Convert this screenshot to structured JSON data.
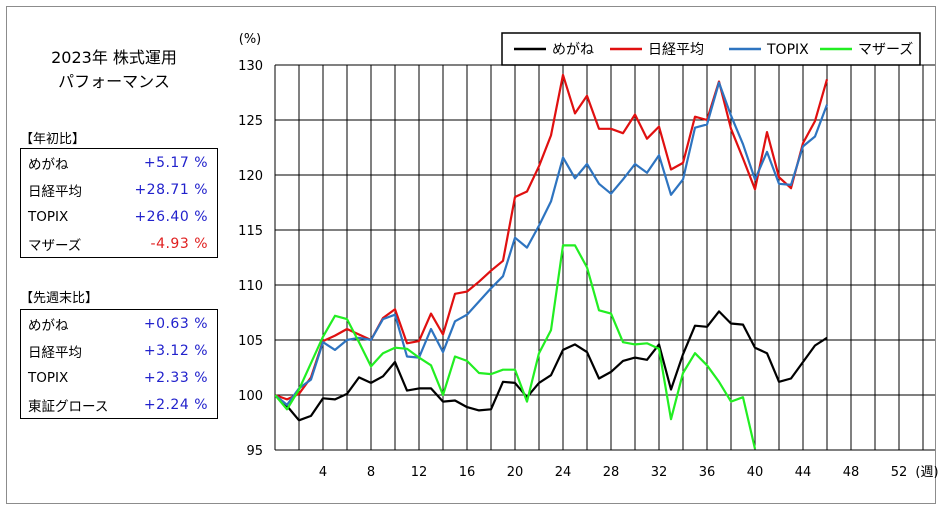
{
  "title": {
    "line1": "2023年 株式運用",
    "line2": "パフォーマンス"
  },
  "ytd": {
    "heading": "【年初比】",
    "rows": [
      {
        "name": "めがね",
        "value": "+5.17 %",
        "color": "#2222cc"
      },
      {
        "name": "日経平均",
        "value": "+28.71 %",
        "color": "#2222cc"
      },
      {
        "name": "TOPIX",
        "value": "+26.40 %",
        "color": "#2222cc"
      },
      {
        "name": "マザーズ",
        "value": "-4.93 %",
        "color": "#e02020"
      }
    ]
  },
  "wow": {
    "heading": "【先週末比】",
    "rows": [
      {
        "name": "めがね",
        "value": "+0.63 %",
        "color": "#2222cc"
      },
      {
        "name": "日経平均",
        "value": "+3.12 %",
        "color": "#2222cc"
      },
      {
        "name": "TOPIX",
        "value": "+2.33 %",
        "color": "#2222cc"
      },
      {
        "name": "東証グロース",
        "value": "+2.24 %",
        "color": "#2222cc"
      }
    ]
  },
  "chart_data": {
    "type": "line",
    "ylabel": "(%)",
    "xlabel": "(週)",
    "ylim": [
      95,
      130
    ],
    "xlim": [
      0,
      55
    ],
    "yticks": [
      95,
      100,
      105,
      110,
      115,
      120,
      125,
      130
    ],
    "xticks": [
      4,
      8,
      12,
      16,
      20,
      24,
      28,
      32,
      36,
      40,
      44,
      48,
      52
    ],
    "grid": true,
    "legend": "top-right",
    "series": [
      {
        "name": "めがね",
        "color": "#000000",
        "x": [
          0,
          1,
          2,
          3,
          4,
          5,
          6,
          7,
          8,
          9,
          10,
          11,
          12,
          13,
          14,
          15,
          16,
          17,
          18,
          19,
          20,
          21,
          22,
          23,
          24,
          25,
          26,
          27,
          28,
          29,
          30,
          31,
          32,
          33,
          34,
          35,
          36,
          37,
          38,
          39,
          40,
          41,
          42,
          43,
          44,
          45,
          46
        ],
        "y": [
          100,
          99,
          97.7,
          98.1,
          99.7,
          99.6,
          100.1,
          101.6,
          101.1,
          101.7,
          103,
          100.4,
          100.6,
          100.6,
          99.4,
          99.5,
          98.9,
          98.6,
          98.7,
          101.2,
          101.1,
          99.8,
          101.1,
          101.8,
          104.1,
          104.6,
          103.9,
          101.5,
          102.1,
          103.1,
          103.4,
          103.2,
          104.6,
          100.5,
          103.7,
          106.3,
          106.2,
          107.6,
          106.5,
          106.4,
          104.3,
          103.8,
          101.2,
          101.5,
          103,
          104.5,
          105.2
        ]
      },
      {
        "name": "日経平均",
        "color": "#e01010",
        "x": [
          0,
          1,
          2,
          3,
          4,
          5,
          6,
          7,
          8,
          9,
          10,
          11,
          12,
          13,
          14,
          15,
          16,
          17,
          18,
          19,
          20,
          21,
          22,
          23,
          24,
          25,
          26,
          27,
          28,
          29,
          30,
          31,
          32,
          33,
          34,
          35,
          36,
          37,
          38,
          39,
          40,
          41,
          42,
          43,
          44,
          45,
          46
        ],
        "y": [
          100,
          99.6,
          100.1,
          101.6,
          104.9,
          105.4,
          106,
          105.5,
          105,
          107,
          107.8,
          104.7,
          104.9,
          107.4,
          105.5,
          109.2,
          109.4,
          110.3,
          111.3,
          112.2,
          118,
          118.5,
          120.8,
          123.6,
          129.1,
          125.6,
          127.2,
          124.2,
          124.2,
          123.8,
          125.5,
          123.3,
          124.4,
          120.5,
          121.1,
          125.3,
          125,
          128.5,
          124.2,
          121.5,
          118.7,
          123.9,
          119.8,
          118.8,
          122.9,
          124.9,
          128.7
        ]
      },
      {
        "name": "TOPIX",
        "color": "#2e74c0",
        "x": [
          0,
          1,
          2,
          3,
          4,
          5,
          6,
          7,
          8,
          9,
          10,
          11,
          12,
          13,
          14,
          15,
          16,
          17,
          18,
          19,
          20,
          21,
          22,
          23,
          24,
          25,
          26,
          27,
          28,
          29,
          30,
          31,
          32,
          33,
          34,
          35,
          36,
          37,
          38,
          39,
          40,
          41,
          42,
          43,
          44,
          45,
          46
        ],
        "y": [
          100,
          99.1,
          100.6,
          101.4,
          104.8,
          104.1,
          105,
          105.2,
          105,
          106.9,
          107.3,
          103.5,
          103.4,
          106,
          103.9,
          106.7,
          107.3,
          108.5,
          109.7,
          110.8,
          114.3,
          113.4,
          115.4,
          117.6,
          121.6,
          119.7,
          121,
          119.2,
          118.3,
          119.6,
          121,
          120.2,
          121.8,
          118.2,
          119.6,
          124.3,
          124.6,
          128.4,
          125.4,
          122.8,
          119.6,
          122.1,
          119.2,
          119.1,
          122.6,
          123.5,
          126.4
        ]
      },
      {
        "name": "マザーズ",
        "color": "#22ee22",
        "x": [
          0,
          1,
          2,
          3,
          4,
          5,
          6,
          7,
          8,
          9,
          10,
          11,
          12,
          13,
          14,
          15,
          16,
          17,
          18,
          19,
          20,
          21,
          22,
          23,
          24,
          25,
          26,
          27,
          28,
          29,
          30,
          31,
          32,
          33,
          34,
          35,
          36,
          37,
          38,
          39,
          40
        ],
        "y": [
          100,
          98.7,
          100.5,
          102.9,
          105.3,
          107.2,
          106.9,
          104.8,
          102.6,
          103.8,
          104.3,
          104.2,
          103.4,
          102.7,
          100,
          103.5,
          103.1,
          102,
          101.9,
          102.3,
          102.3,
          99.4,
          103.8,
          105.9,
          113.6,
          113.6,
          111.6,
          107.7,
          107.4,
          104.8,
          104.6,
          104.7,
          104.2,
          97.8,
          102,
          103.8,
          102.7,
          101.2,
          99.4,
          99.8,
          95.1
        ]
      }
    ]
  }
}
